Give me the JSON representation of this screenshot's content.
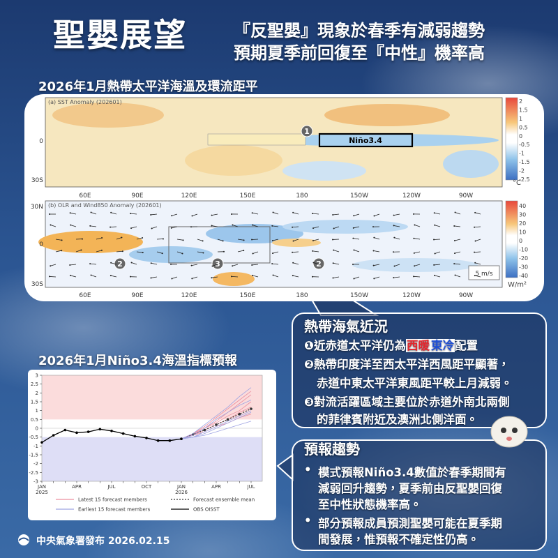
{
  "header": {
    "title": "聖嬰展望",
    "subtitle_lines": [
      "『反聖嬰』現象於春季有減弱趨勢",
      "預期夏季前回復至『中性』機率高"
    ]
  },
  "map_section": {
    "title": "2026年1月熱帶太平洋海溫及環流距平",
    "panel_a": {
      "label": "(a) SST Anomaly (202601)",
      "box_label": "Niño3.4",
      "unit": "°C",
      "lat_labels": [
        "0",
        "30S"
      ],
      "colorbar_ticks": [
        2,
        1.5,
        1,
        0.5,
        0,
        -0.5,
        -1,
        -1.5,
        -2,
        -2.5
      ],
      "markers": [
        "1"
      ]
    },
    "panel_b": {
      "label": "(b) OLR and Wind850 Anomaly (202601)",
      "unit": "W/m²",
      "lat_labels": [
        "30N",
        "0",
        "30S"
      ],
      "colorbar_ticks": [
        40,
        30,
        20,
        10,
        0,
        -10,
        -20,
        -30,
        -40
      ],
      "markers": [
        "2",
        "3",
        "2"
      ],
      "scale_label": "5 m/s"
    },
    "lon_labels": [
      "60E",
      "90E",
      "120E",
      "150E",
      "180",
      "150W",
      "120W",
      "90W"
    ]
  },
  "status_box": {
    "title": "熱帶海氣近況",
    "items": [
      {
        "bullet": "❶",
        "segments": [
          {
            "text": "近赤道太平洋仍為"
          },
          {
            "text": "西暖",
            "color": "#e3262d"
          },
          {
            "text": "東冷",
            "color": "#1f4fd6"
          },
          {
            "text": "配置"
          }
        ]
      },
      {
        "bullet": "❷",
        "lines": [
          "熱帶印度洋至西太平洋西風距平顯著，",
          "赤道中東太平洋東風距平較上月減弱。"
        ]
      },
      {
        "bullet": "❸",
        "lines": [
          "對流活躍區域主要位於赤道外南北兩側",
          "的菲律賓附近及澳洲北側洋面。"
        ]
      }
    ]
  },
  "forecast_box": {
    "title": "預報趨勢",
    "items": [
      {
        "bullet": "•",
        "lines": [
          "模式預報Niño3.4數值於春季期間有",
          "減弱回升趨勢，夏季前由反聖嬰回復",
          "至中性狀態機率高。"
        ]
      },
      {
        "bullet": "•",
        "lines": [
          "部分預報成員預測聖嬰可能在夏季期",
          "間發展，惟預報不確定性仍高。"
        ]
      }
    ]
  },
  "chart_data": {
    "type": "line",
    "title": "2026年1月Niño3.4海溫指標預報",
    "categories": [
      "JAN",
      null,
      null,
      "APR",
      null,
      null,
      "JUL",
      null,
      null,
      "OCT",
      null,
      null,
      "JAN",
      null,
      null,
      "APR",
      null,
      null,
      "JUL"
    ],
    "category_years": [
      "2025",
      null,
      null,
      null,
      null,
      null,
      null,
      null,
      null,
      null,
      null,
      null,
      "2026",
      null,
      null,
      null,
      null,
      null,
      null
    ],
    "ylim": [
      -3,
      3
    ],
    "yticks": [
      -3,
      -2.5,
      -2,
      -1.5,
      -1,
      -0.5,
      0,
      0.5,
      1,
      1.5,
      2,
      2.5,
      3
    ],
    "bands": [
      {
        "from": 0.5,
        "to": 3,
        "color": "#fbdcdc"
      },
      {
        "from": -3,
        "to": -0.5,
        "color": "#dedef6"
      }
    ],
    "series": [
      {
        "name": "Latest 15 forecast members",
        "color": "#ec8f9f",
        "members": [
          [
            null,
            null,
            null,
            null,
            null,
            null,
            null,
            null,
            null,
            null,
            null,
            null,
            -0.6,
            -0.3,
            0.0,
            0.4,
            0.9,
            1.4,
            1.9
          ],
          [
            null,
            null,
            null,
            null,
            null,
            null,
            null,
            null,
            null,
            null,
            null,
            null,
            -0.6,
            -0.4,
            -0.1,
            0.2,
            0.5,
            0.9,
            1.2
          ],
          [
            null,
            null,
            null,
            null,
            null,
            null,
            null,
            null,
            null,
            null,
            null,
            null,
            -0.6,
            -0.3,
            0.1,
            0.6,
            1.1,
            1.6,
            2.1
          ],
          [
            null,
            null,
            null,
            null,
            null,
            null,
            null,
            null,
            null,
            null,
            null,
            null,
            -0.6,
            -0.4,
            -0.2,
            0.1,
            0.3,
            0.6,
            0.8
          ],
          [
            null,
            null,
            null,
            null,
            null,
            null,
            null,
            null,
            null,
            null,
            null,
            null,
            -0.6,
            -0.35,
            0.0,
            0.3,
            0.7,
            1.0,
            1.5
          ]
        ]
      },
      {
        "name": "Forecast ensemble mean",
        "color": "#333333",
        "dash": "2 2",
        "markers": true,
        "values": [
          null,
          null,
          null,
          null,
          null,
          null,
          null,
          null,
          null,
          null,
          null,
          null,
          -0.6,
          -0.35,
          -0.1,
          0.2,
          0.5,
          0.8,
          1.1
        ]
      },
      {
        "name": "Earliest 15 forecast members",
        "color": "#9ea3e2",
        "members": [
          [
            null,
            null,
            null,
            null,
            null,
            null,
            null,
            null,
            null,
            null,
            null,
            null,
            -0.6,
            -0.5,
            -0.3,
            0.0,
            0.3,
            0.6,
            0.9
          ],
          [
            null,
            null,
            null,
            null,
            null,
            null,
            null,
            null,
            null,
            null,
            null,
            null,
            -0.6,
            -0.3,
            0.2,
            0.7,
            1.2,
            1.8,
            2.3
          ],
          [
            null,
            null,
            null,
            null,
            null,
            null,
            null,
            null,
            null,
            null,
            null,
            null,
            -0.6,
            -0.5,
            -0.4,
            -0.2,
            0.0,
            0.2,
            0.4
          ],
          [
            null,
            null,
            null,
            null,
            null,
            null,
            null,
            null,
            null,
            null,
            null,
            null,
            -0.6,
            -0.4,
            0.0,
            0.5,
            0.9,
            1.3,
            1.6
          ],
          [
            null,
            null,
            null,
            null,
            null,
            null,
            null,
            null,
            null,
            null,
            null,
            null,
            -0.6,
            -0.5,
            -0.2,
            0.1,
            0.4,
            0.7,
            1.0
          ]
        ]
      },
      {
        "name": "OBS OISST",
        "color": "#000000",
        "markers": true,
        "values": [
          -0.8,
          -0.4,
          -0.1,
          -0.25,
          -0.2,
          -0.05,
          -0.15,
          -0.3,
          -0.45,
          -0.55,
          -0.7,
          -0.7,
          -0.6,
          null,
          null,
          null,
          null,
          null,
          null
        ]
      }
    ]
  },
  "footer": {
    "text": "中央氣象署發布 2026.02.15"
  }
}
